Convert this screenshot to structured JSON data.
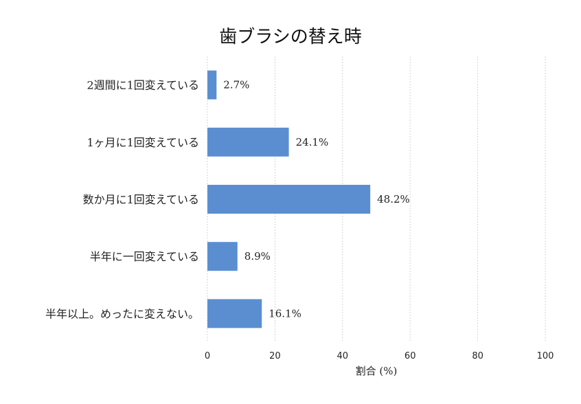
{
  "chart_data": {
    "type": "bar",
    "orientation": "horizontal",
    "title": "歯ブラシの替え時",
    "xlabel": "割合 (%)",
    "ylabel": "",
    "xlim": [
      0,
      100
    ],
    "xticks": [
      0,
      20,
      40,
      60,
      80,
      100
    ],
    "grid": "vertical dashed",
    "bar_color": "#5b8ed0",
    "categories": [
      "2週間に1回変えている",
      "1ヶ月に1回変えている",
      "数か月に1回変えている",
      "半年に一回変えている",
      "半年以上。めったに変えない。"
    ],
    "values": [
      2.7,
      24.1,
      48.2,
      8.9,
      16.1
    ],
    "value_labels": [
      "2.7%",
      "24.1%",
      "48.2%",
      "8.9%",
      "16.1%"
    ]
  }
}
